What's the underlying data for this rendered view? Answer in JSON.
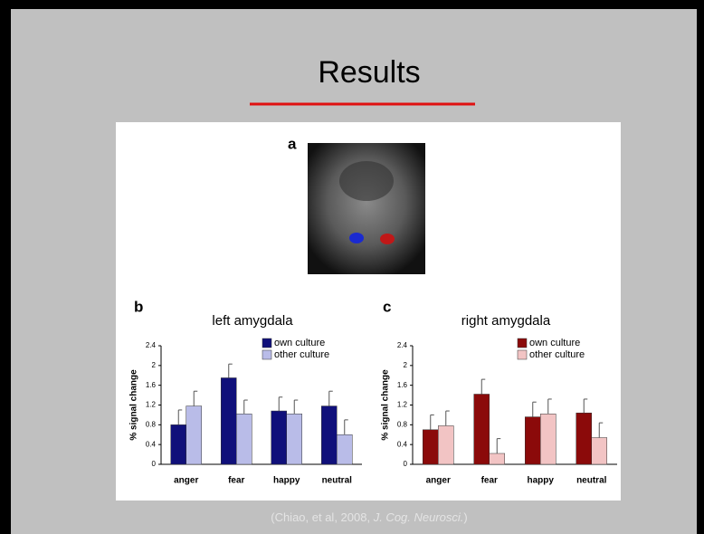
{
  "title": "Results",
  "figure_labels": [
    "a",
    "b",
    "c"
  ],
  "citation": [
    "(Chiao, et al, 2008, ",
    "J. Cog. Neurosci.",
    ")"
  ],
  "chart_data": [
    {
      "type": "bar",
      "title": "left amygdala",
      "y_label": "% signal change",
      "categories": [
        "anger",
        "fear",
        "happy",
        "neutral"
      ],
      "series": [
        {
          "name": "own culture",
          "color": "#10107a",
          "values": [
            0.8,
            1.75,
            1.08,
            1.18
          ],
          "errors": [
            0.3,
            0.28,
            0.28,
            0.3
          ]
        },
        {
          "name": "other culture",
          "color": "#b9bce8",
          "values": [
            1.18,
            1.02,
            1.02,
            0.6
          ],
          "errors": [
            0.3,
            0.28,
            0.28,
            0.3
          ]
        }
      ],
      "ylim": [
        0,
        2.4
      ],
      "yticks": [
        0,
        0.4,
        0.8,
        1.2,
        1.6,
        2,
        2.4
      ],
      "grid": false,
      "legend": "top-right"
    },
    {
      "type": "bar",
      "title": "right amygdala",
      "y_label": "% signal change",
      "categories": [
        "anger",
        "fear",
        "happy",
        "neutral"
      ],
      "series": [
        {
          "name": "own culture",
          "color": "#8b0a0a",
          "values": [
            0.7,
            1.42,
            0.96,
            1.04
          ],
          "errors": [
            0.3,
            0.3,
            0.3,
            0.28
          ]
        },
        {
          "name": "other culture",
          "color": "#f2c4c4",
          "values": [
            0.78,
            0.22,
            1.02,
            0.54
          ],
          "errors": [
            0.3,
            0.3,
            0.3,
            0.3
          ]
        }
      ],
      "ylim": [
        0,
        2.4
      ],
      "yticks": [
        0,
        0.4,
        0.8,
        1.2,
        1.6,
        2,
        2.4
      ],
      "grid": false,
      "legend": "top-right"
    }
  ]
}
